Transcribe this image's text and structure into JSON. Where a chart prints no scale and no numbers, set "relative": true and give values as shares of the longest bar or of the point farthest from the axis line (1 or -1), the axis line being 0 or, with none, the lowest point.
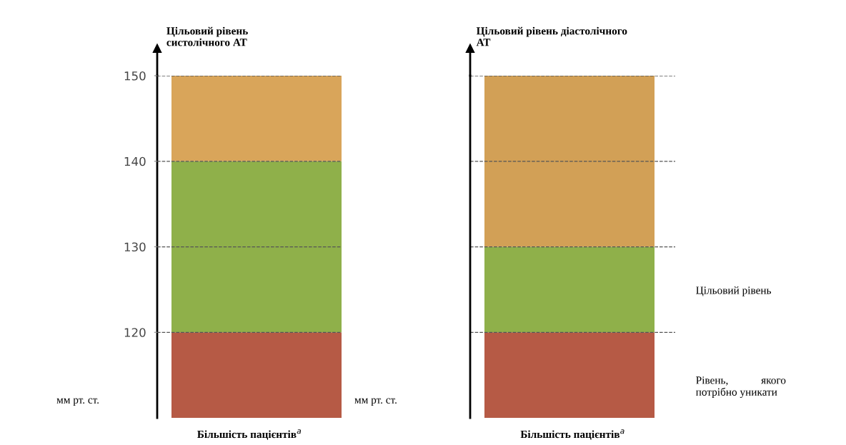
{
  "chart_data": [
    {
      "type": "bar",
      "title": "Цільовий рівень\nсистолічного АТ",
      "ylabel": "мм рт. ст.",
      "xlabel": "Більшість пацієнтів$^{a}$",
      "categories": [
        null
      ],
      "ylim": [
        110,
        150
      ],
      "yticks": [
        120,
        130,
        140,
        150
      ],
      "grid": "y",
      "series": [
        {
          "color": "#b65a45",
          "base": [
            110
          ],
          "values": [
            10
          ]
        },
        {
          "color": "#8fb04a",
          "base": [
            120
          ],
          "values": [
            20
          ]
        },
        {
          "color": "#d9a55a",
          "base": [
            140
          ],
          "values": [
            10
          ]
        }
      ]
    },
    {
      "type": "bar",
      "relative": true,
      "stacked": true,
      "title": "Цільовий рівень діастолічного\nАТ",
      "ylabel": "мм рт. ст.",
      "xlabel": "Більшість пацієнтів$^{a}$",
      "categories": [
        null
      ],
      "series": [
        {
          "color": "#b65a45",
          "values": [
            0.25
          ]
        },
        {
          "color": "#8fb04a",
          "values": [
            0.25
          ]
        },
        {
          "color": "#d2a056",
          "values": [
            0.5
          ]
        }
      ],
      "ref_lines": [
        {
          "axis": "y",
          "value": 0.25,
          "line_style": "dashed",
          "color": "#555555"
        },
        {
          "axis": "y",
          "value": 0.5,
          "line_style": "dashed",
          "color": "#555555"
        },
        {
          "axis": "y",
          "value": 0.75,
          "line_style": "dashed",
          "color": "#555555"
        },
        {
          "axis": "y",
          "value": 1,
          "line_style": "dashed",
          "color": "#555555"
        }
      ],
      "annotations": [
        "Цільовий рівень",
        "Рівень,            якого\nпотрібно уникати"
      ]
    }
  ]
}
